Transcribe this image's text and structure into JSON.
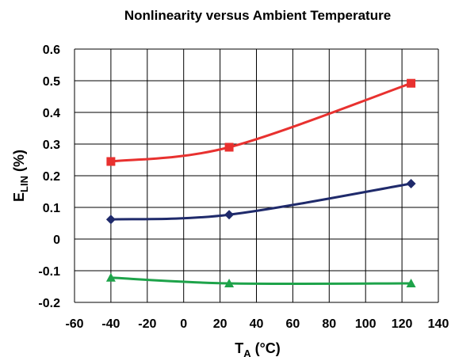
{
  "chart_data": {
    "type": "line",
    "title": "Nonlinearity versus Ambient Temperature",
    "xlabel": {
      "main": "T",
      "sub": "A",
      "rest": " (°C)"
    },
    "ylabel": {
      "main": "E",
      "sub": "LIN",
      "rest": " (%)"
    },
    "xlim": [
      -60,
      140
    ],
    "ylim": [
      -0.2,
      0.6
    ],
    "xticks": [
      "-60",
      "-40",
      "-20",
      "0",
      "20",
      "40",
      "60",
      "80",
      "100",
      "120",
      "140"
    ],
    "yticks": [
      "0.6",
      "0.5",
      "0.4",
      "0.3",
      "0.2",
      "0.1",
      "0",
      "-0.1",
      "-0.2"
    ],
    "grid": true,
    "legend": "none",
    "x": [
      -40,
      25,
      125
    ],
    "series": [
      {
        "color": "#e8312f",
        "marker": "square",
        "values": [
          0.245,
          0.29,
          0.492
        ]
      },
      {
        "color": "#1f2a6b",
        "marker": "diamond",
        "values": [
          0.062,
          0.077,
          0.175
        ]
      },
      {
        "color": "#1ea34a",
        "marker": "triangle",
        "values": [
          -0.122,
          -0.14,
          -0.14
        ]
      }
    ]
  }
}
